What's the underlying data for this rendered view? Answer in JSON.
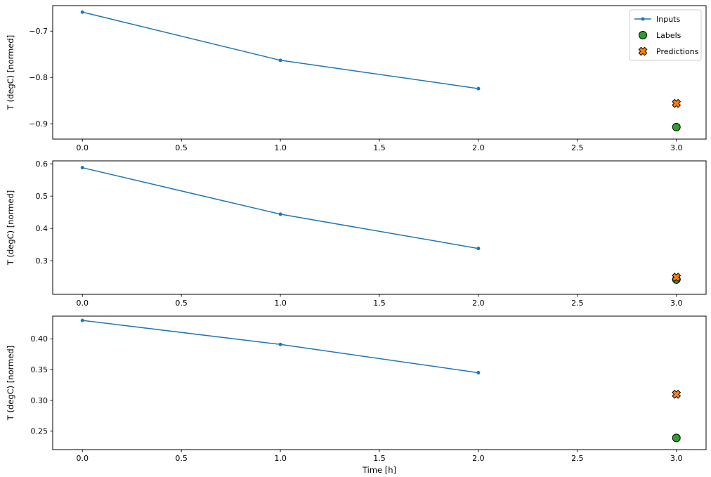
{
  "figure": {
    "xlabel": "Time [h]",
    "ylabel": "T (degC) [normed]"
  },
  "chart_data": [
    {
      "type": "line",
      "title": "",
      "xlabel": "",
      "ylabel": "T (degC) [normed]",
      "xlim": [
        -0.15,
        3.15
      ],
      "ylim": [
        -0.933,
        -0.645
      ],
      "xtick_values": [
        0.0,
        0.5,
        1.0,
        1.5,
        2.0,
        2.5,
        3.0
      ],
      "xtick_labels": [
        "0.0",
        "0.5",
        "1.0",
        "1.5",
        "2.0",
        "2.5",
        "3.0"
      ],
      "ytick_values": [
        -0.9,
        -0.8,
        -0.7
      ],
      "ytick_labels": [
        "−0.9",
        "−0.8",
        "−0.7"
      ],
      "grid": false,
      "show_legend": true,
      "legend_position": "upper right",
      "series": [
        {
          "name": "Inputs",
          "kind": "line",
          "marker": "dot",
          "color": "#1f77b4",
          "x": [
            0,
            1,
            2
          ],
          "y": [
            -0.659,
            -0.763,
            -0.824
          ]
        },
        {
          "name": "Labels",
          "kind": "scatter",
          "marker": "circle",
          "color": "#2ca02c",
          "edge_color": "#000000",
          "x": [
            3
          ],
          "y": [
            -0.907
          ]
        },
        {
          "name": "Predictions",
          "kind": "scatter",
          "marker": "X",
          "color": "#ff7f0e",
          "edge_color": "#000000",
          "x": [
            3
          ],
          "y": [
            -0.856
          ]
        }
      ]
    },
    {
      "type": "line",
      "title": "",
      "xlabel": "",
      "ylabel": "T (degC) [normed]",
      "xlim": [
        -0.15,
        3.15
      ],
      "ylim": [
        0.196,
        0.609
      ],
      "xtick_values": [
        0.0,
        0.5,
        1.0,
        1.5,
        2.0,
        2.5,
        3.0
      ],
      "xtick_labels": [
        "0.0",
        "0.5",
        "1.0",
        "1.5",
        "2.0",
        "2.5",
        "3.0"
      ],
      "ytick_values": [
        0.3,
        0.4,
        0.5,
        0.6
      ],
      "ytick_labels": [
        "0.3",
        "0.4",
        "0.5",
        "0.6"
      ],
      "grid": false,
      "show_legend": false,
      "legend_position": "none",
      "series": [
        {
          "name": "Inputs",
          "kind": "line",
          "marker": "dot",
          "color": "#1f77b4",
          "x": [
            0,
            1,
            2
          ],
          "y": [
            0.588,
            0.444,
            0.338
          ]
        },
        {
          "name": "Labels",
          "kind": "scatter",
          "marker": "circle",
          "color": "#2ca02c",
          "edge_color": "#000000",
          "x": [
            3
          ],
          "y": [
            0.242
          ]
        },
        {
          "name": "Predictions",
          "kind": "scatter",
          "marker": "X",
          "color": "#ff7f0e",
          "edge_color": "#000000",
          "x": [
            3
          ],
          "y": [
            0.249
          ]
        }
      ]
    },
    {
      "type": "line",
      "title": "",
      "xlabel": "Time [h]",
      "ylabel": "T (degC) [normed]",
      "xlim": [
        -0.15,
        3.15
      ],
      "ylim": [
        0.22,
        0.437
      ],
      "xtick_values": [
        0.0,
        0.5,
        1.0,
        1.5,
        2.0,
        2.5,
        3.0
      ],
      "xtick_labels": [
        "0.0",
        "0.5",
        "1.0",
        "1.5",
        "2.0",
        "2.5",
        "3.0"
      ],
      "ytick_values": [
        0.25,
        0.3,
        0.35,
        0.4
      ],
      "ytick_labels": [
        "0.25",
        "0.30",
        "0.35",
        "0.40"
      ],
      "grid": false,
      "show_legend": false,
      "legend_position": "none",
      "series": [
        {
          "name": "Inputs",
          "kind": "line",
          "marker": "dot",
          "color": "#1f77b4",
          "x": [
            0,
            1,
            2
          ],
          "y": [
            0.43,
            0.391,
            0.345
          ]
        },
        {
          "name": "Labels",
          "kind": "scatter",
          "marker": "circle",
          "color": "#2ca02c",
          "edge_color": "#000000",
          "x": [
            3
          ],
          "y": [
            0.239
          ]
        },
        {
          "name": "Predictions",
          "kind": "scatter",
          "marker": "X",
          "color": "#ff7f0e",
          "edge_color": "#000000",
          "x": [
            3
          ],
          "y": [
            0.31
          ]
        }
      ]
    }
  ]
}
